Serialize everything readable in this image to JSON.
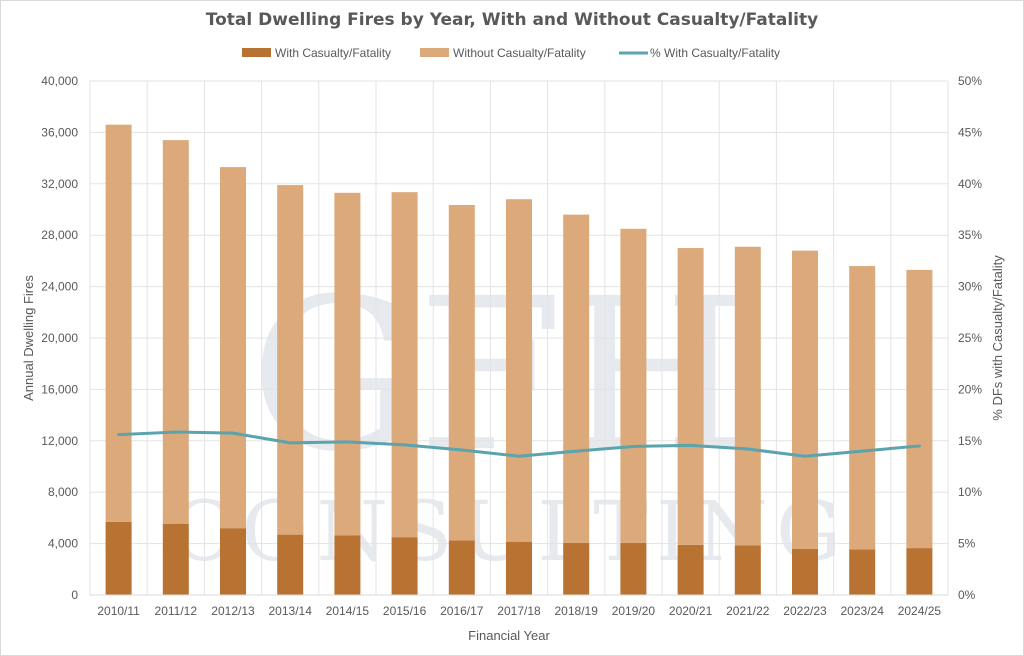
{
  "chart_data": {
    "type": "bar",
    "stacked": true,
    "title": "Total Dwelling Fires by Year, With and Without Casualty/Fatality",
    "xlabel": "Financial Year",
    "ylabel": "Annual Dwelling Fires",
    "y2label": "% DFs with Casualty/Fatality",
    "ylim": [
      0,
      40000
    ],
    "y2lim": [
      0,
      0.5
    ],
    "yticks": [
      "0",
      "4,000",
      "8,000",
      "12,000",
      "16,000",
      "20,000",
      "24,000",
      "28,000",
      "32,000",
      "36,000",
      "40,000"
    ],
    "y2ticks": [
      "0%",
      "5%",
      "10%",
      "15%",
      "20%",
      "25%",
      "30%",
      "35%",
      "40%",
      "45%",
      "50%"
    ],
    "grid": true,
    "legend_position": "top-center",
    "categories": [
      "2010/11",
      "2011/12",
      "2012/13",
      "2013/14",
      "2014/15",
      "2015/16",
      "2016/17",
      "2017/18",
      "2018/19",
      "2019/20",
      "2020/21",
      "2021/22",
      "2022/23",
      "2023/24",
      "2024/25"
    ],
    "series": [
      {
        "name": "With Casualty/Fatality",
        "type": "bar",
        "axis": "left",
        "color": "#b87333",
        "values": [
          5700,
          5550,
          5200,
          4700,
          4650,
          4500,
          4250,
          4150,
          4050,
          4050,
          3900,
          3850,
          3600,
          3550,
          3650
        ]
      },
      {
        "name": "Without Casualty/Fatality",
        "type": "bar",
        "axis": "left",
        "color": "#dba97a",
        "values": [
          30900,
          29850,
          28100,
          27200,
          26650,
          26850,
          26100,
          26650,
          25550,
          24450,
          23100,
          23250,
          23200,
          22050,
          21650
        ]
      },
      {
        "name": "% With Casualty/Fatality",
        "type": "line",
        "axis": "right",
        "color": "#5ba3ad",
        "values": [
          0.156,
          0.1585,
          0.1575,
          0.148,
          0.149,
          0.146,
          0.141,
          0.135,
          0.14,
          0.1445,
          0.1455,
          0.142,
          0.135,
          0.14,
          0.145
        ]
      }
    ]
  },
  "watermark": {
    "main": "GFH",
    "sub": "CONSULTING"
  }
}
